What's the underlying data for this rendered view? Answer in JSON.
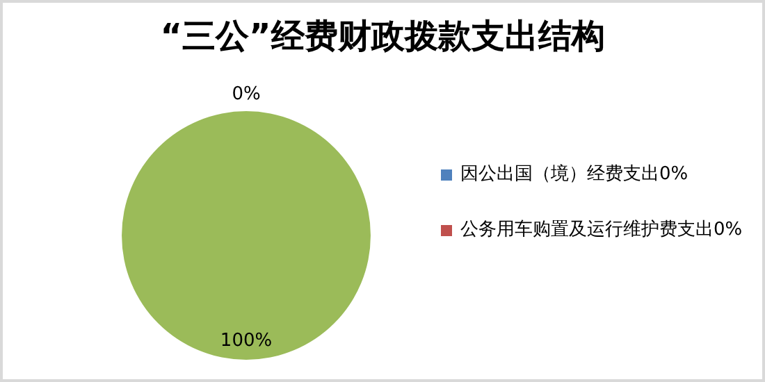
{
  "chart_data": {
    "type": "pie",
    "title": "“三公”经费财政拨款支出结构",
    "categories": [
      "因公出国（境）经费支出0%",
      "公务用车购置及运行维护费支出0%",
      null
    ],
    "values": [
      0,
      0,
      100
    ],
    "colors": [
      "#4f81bd",
      "#c0504d",
      "#9bbb59"
    ],
    "value_labels": [
      "0%",
      null,
      "100%"
    ],
    "legend": "right"
  }
}
